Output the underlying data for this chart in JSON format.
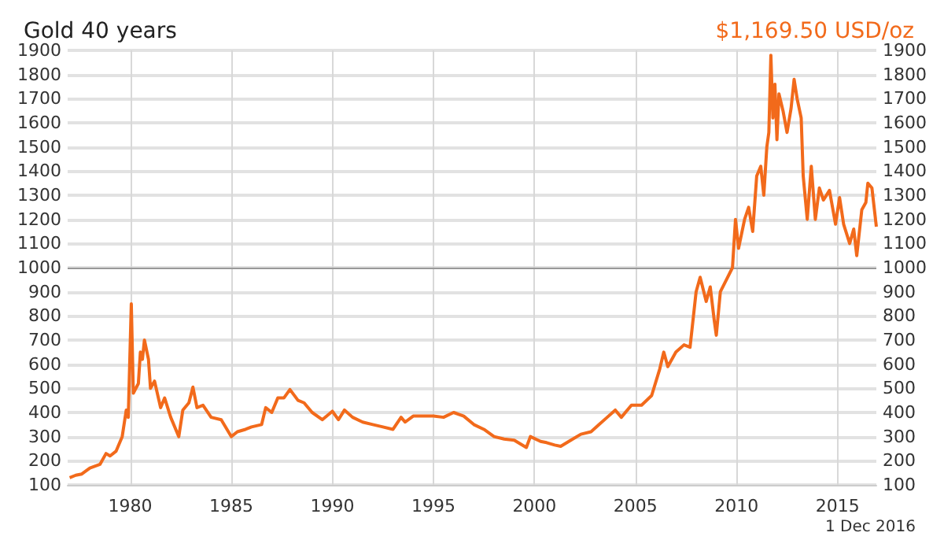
{
  "chart_data": {
    "type": "line",
    "title": "Gold 40 years",
    "subtitle": "$1,169.50 USD/oz",
    "annotations": [
      "1 Dec 2016"
    ],
    "x": [
      1977.0,
      1977.3,
      1977.6,
      1978.0,
      1978.5,
      1978.8,
      1979.0,
      1979.3,
      1979.6,
      1979.8,
      1979.9,
      1980.05,
      1980.15,
      1980.4,
      1980.5,
      1980.6,
      1980.7,
      1980.9,
      1981.0,
      1981.2,
      1981.5,
      1981.7,
      1982.0,
      1982.4,
      1982.6,
      1982.9,
      1983.1,
      1983.3,
      1983.6,
      1984.0,
      1984.5,
      1985.0,
      1985.3,
      1985.7,
      1986.0,
      1986.5,
      1986.7,
      1987.0,
      1987.3,
      1987.6,
      1987.9,
      1988.3,
      1988.6,
      1989.0,
      1989.5,
      1990.0,
      1990.3,
      1990.6,
      1991.0,
      1991.5,
      1992.0,
      1992.5,
      1993.0,
      1993.4,
      1993.6,
      1994.0,
      1995.0,
      1995.5,
      1996.0,
      1996.5,
      1997.0,
      1997.5,
      1998.0,
      1998.5,
      1999.0,
      1999.6,
      1999.8,
      2000.3,
      2000.6,
      2001.0,
      2001.3,
      2001.8,
      2002.3,
      2002.8,
      2003.2,
      2003.6,
      2004.0,
      2004.3,
      2004.8,
      2005.3,
      2005.8,
      2006.2,
      2006.4,
      2006.6,
      2007.0,
      2007.4,
      2007.7,
      2008.0,
      2008.2,
      2008.5,
      2008.7,
      2008.9,
      2009.0,
      2009.2,
      2009.5,
      2009.8,
      2009.95,
      2010.1,
      2010.4,
      2010.6,
      2010.8,
      2011.0,
      2011.2,
      2011.35,
      2011.5,
      2011.6,
      2011.7,
      2011.8,
      2011.9,
      2012.0,
      2012.1,
      2012.3,
      2012.5,
      2012.7,
      2012.85,
      2013.0,
      2013.2,
      2013.3,
      2013.5,
      2013.7,
      2013.9,
      2014.1,
      2014.3,
      2014.6,
      2014.9,
      2015.1,
      2015.3,
      2015.6,
      2015.8,
      2015.95,
      2016.2,
      2016.4,
      2016.5,
      2016.7,
      2016.92
    ],
    "series": [
      {
        "color": "#f26a1b",
        "values": [
          130,
          140,
          145,
          170,
          185,
          230,
          220,
          240,
          300,
          410,
          380,
          850,
          480,
          520,
          650,
          620,
          700,
          620,
          500,
          530,
          420,
          460,
          380,
          300,
          410,
          440,
          505,
          420,
          430,
          380,
          370,
          300,
          320,
          330,
          340,
          350,
          420,
          400,
          460,
          460,
          495,
          450,
          440,
          400,
          370,
          405,
          370,
          410,
          380,
          360,
          350,
          340,
          330,
          380,
          360,
          385,
          385,
          380,
          400,
          385,
          350,
          330,
          300,
          290,
          285,
          255,
          300,
          280,
          275,
          265,
          260,
          285,
          310,
          320,
          350,
          380,
          410,
          380,
          430,
          430,
          470,
          580,
          650,
          590,
          650,
          680,
          670,
          900,
          960,
          860,
          920,
          780,
          720,
          900,
          950,
          1000,
          1200,
          1080,
          1200,
          1250,
          1150,
          1380,
          1420,
          1300,
          1500,
          1560,
          1880,
          1620,
          1760,
          1530,
          1720,
          1650,
          1560,
          1660,
          1780,
          1700,
          1620,
          1380,
          1200,
          1420,
          1200,
          1330,
          1280,
          1320,
          1180,
          1290,
          1180,
          1100,
          1160,
          1050,
          1240,
          1270,
          1350,
          1330,
          1169.5
        ]
      }
    ],
    "xlim": [
      1976.9,
      2016.92
    ],
    "xticks": [
      1980,
      1985,
      1990,
      1995,
      2000,
      2005,
      2010,
      2015
    ],
    "ylim": [
      100,
      1900
    ],
    "yticks": [
      100,
      200,
      300,
      400,
      500,
      600,
      700,
      800,
      900,
      1000,
      1100,
      1200,
      1300,
      1400,
      1500,
      1600,
      1700,
      1800,
      1900
    ],
    "y2lim": [
      100,
      1900
    ],
    "y2ticks": [
      100,
      200,
      300,
      400,
      500,
      600,
      700,
      800,
      900,
      1000,
      1100,
      1200,
      1300,
      1400,
      1500,
      1600,
      1700,
      1800,
      1900
    ],
    "ref_lines": [
      {
        "axis": "y",
        "value": 1000,
        "color": "#999999"
      }
    ],
    "grid": true,
    "marker": "none",
    "line_style": "solid"
  }
}
